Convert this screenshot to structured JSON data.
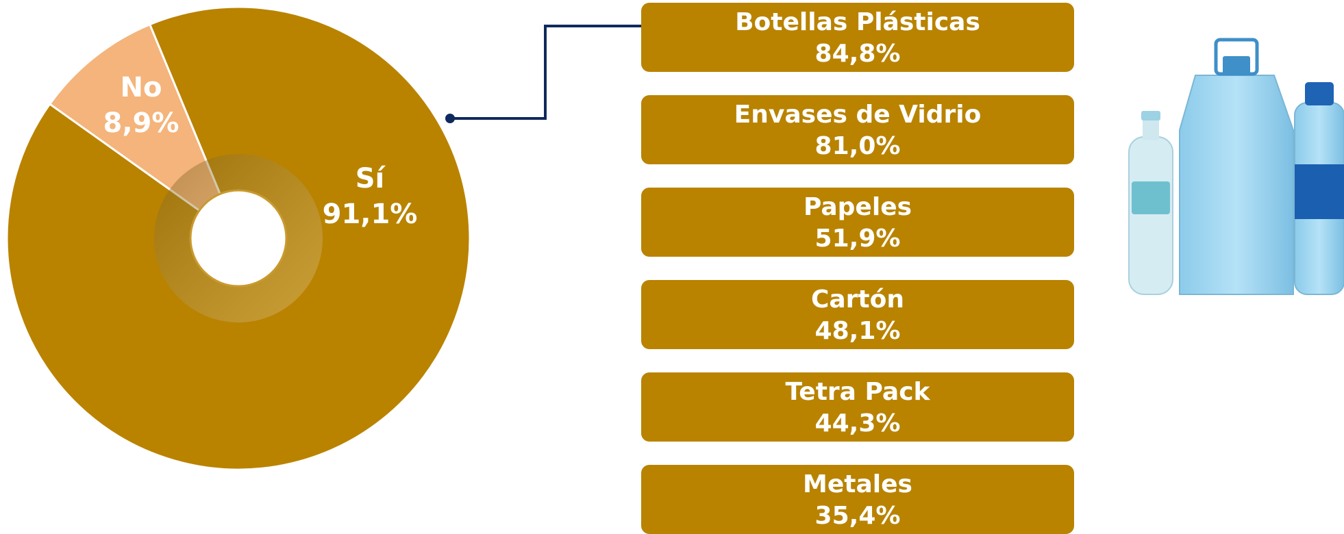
{
  "chart_data": {
    "type": "pie",
    "categories": [
      "Sí",
      "No"
    ],
    "values": [
      91.1,
      8.9
    ],
    "value_labels": [
      "91,1%",
      "8,9%"
    ],
    "colors": [
      "#b98300",
      "#f4b47b"
    ]
  },
  "breakdown": {
    "categories": [
      "Botellas Plásticas",
      "Envases de Vidrio",
      "Papeles",
      "Cartón",
      "Tetra Pack",
      "Metales"
    ],
    "values": [
      84.8,
      81.0,
      51.9,
      48.1,
      44.3,
      35.4
    ],
    "value_labels": [
      "84,8%",
      "81,0%",
      "51,9%",
      "48,1%",
      "44,3%",
      "35,4%"
    ],
    "color": "#b98300"
  }
}
